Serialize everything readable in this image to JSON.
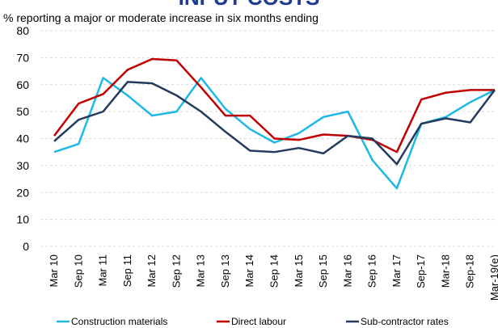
{
  "chart_data": {
    "type": "line",
    "title": "INPUT COSTS",
    "subtitle": "% reporting a major or moderate increase in six months ending",
    "categories": [
      "Mar 10",
      "Sep 10",
      "Mar 11",
      "Sep 11",
      "Mar 12",
      "Sep 12",
      "Mar 13",
      "Sep 13",
      "Mar 14",
      "Sep 14",
      "Mar 15",
      "Sep 15",
      "Mar 16",
      "Sep 16",
      "Mar 17",
      "Sep-17",
      "Mar-18",
      "Sep-18",
      "Mar-19(e)"
    ],
    "series": [
      {
        "name": "Construction materials",
        "color": "#1fb8e6",
        "values": [
          35,
          38,
          62.5,
          56,
          48.5,
          50,
          62.5,
          51,
          43.5,
          38.5,
          42,
          48,
          50,
          32,
          21.5,
          45.5,
          48,
          53.5,
          58
        ]
      },
      {
        "name": "Direct labour",
        "color": "#c00000",
        "values": [
          41,
          53,
          56.5,
          65.5,
          69.5,
          69,
          59,
          48.5,
          48.5,
          40,
          39.5,
          41.5,
          41,
          39.5,
          35,
          54.5,
          57,
          58,
          58
        ]
      },
      {
        "name": "Sub-contractor rates",
        "color": "#243b5e",
        "values": [
          39,
          47,
          50,
          61,
          60.5,
          56,
          50,
          42.5,
          35.5,
          35,
          36.5,
          34.5,
          41,
          40,
          30.5,
          45.5,
          47.5,
          46,
          58
        ]
      }
    ],
    "ylim": [
      0,
      80
    ],
    "yticks": [
      0,
      10,
      20,
      30,
      40,
      50,
      60,
      70,
      80
    ],
    "grid": true
  }
}
